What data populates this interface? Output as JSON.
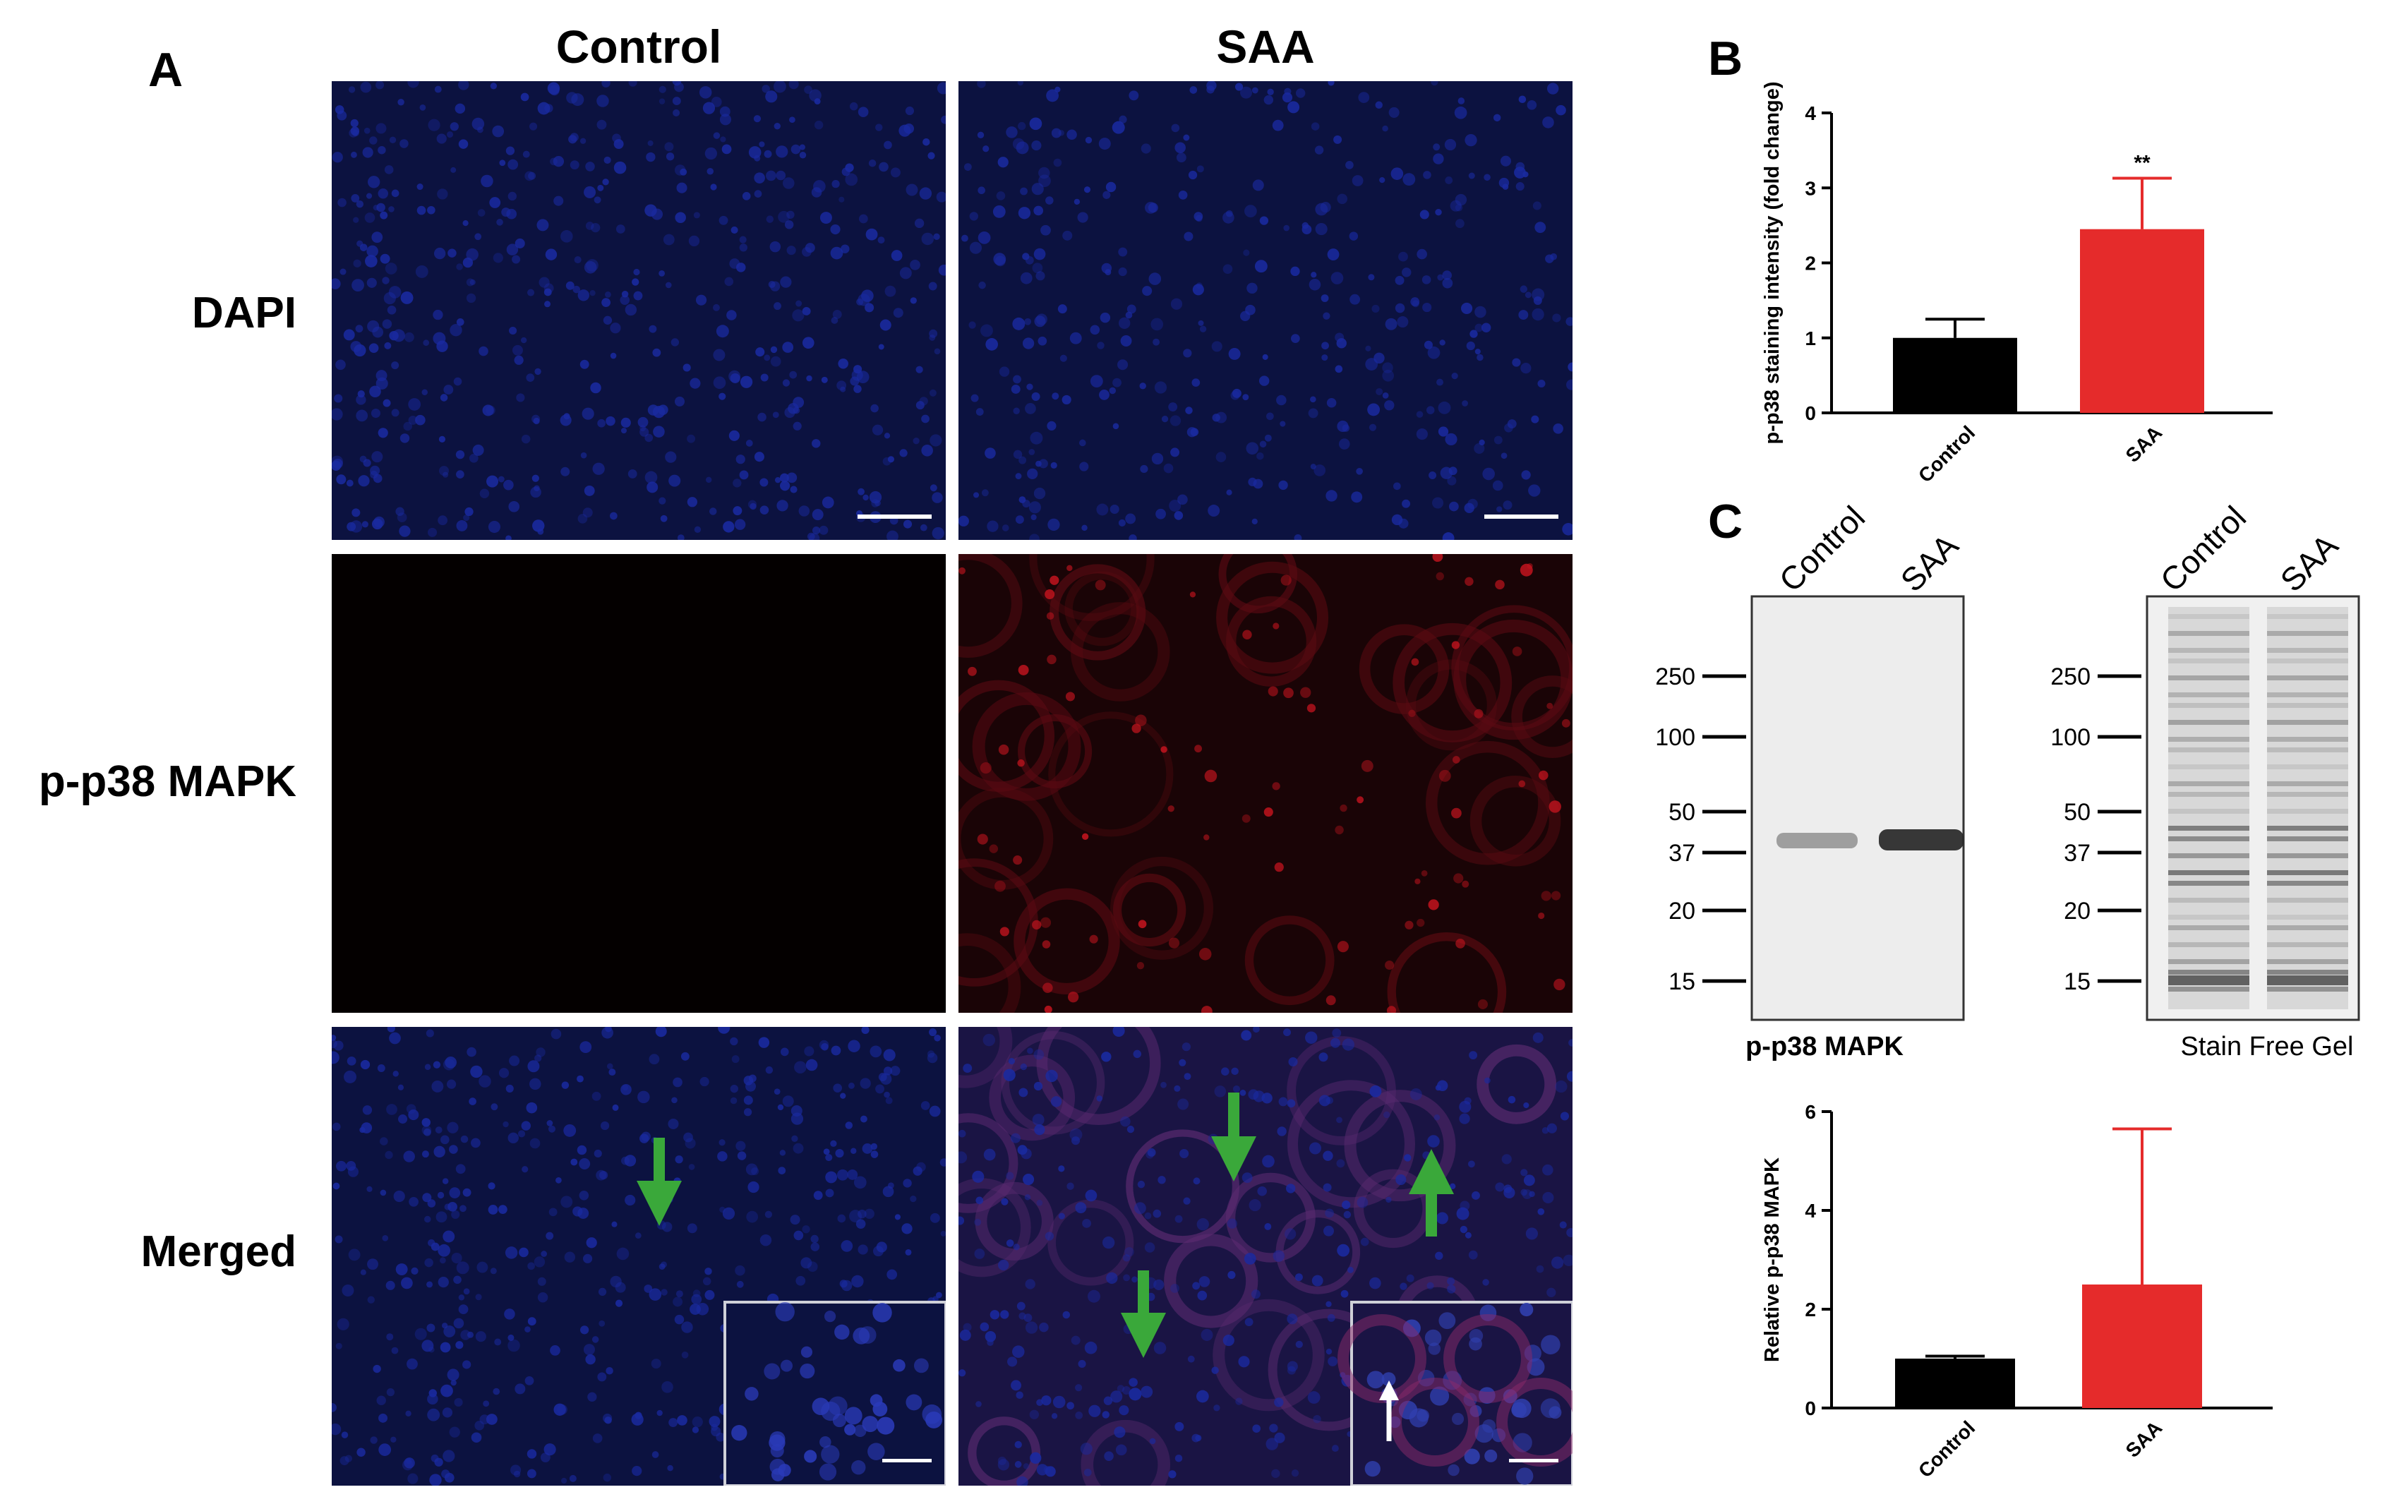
{
  "panels": {
    "a_label": "A",
    "b_label": "B",
    "c_label": "C"
  },
  "microscopy": {
    "col_titles": [
      "Control",
      "SAA"
    ],
    "row_titles": [
      "DAPI",
      "p-p38 MAPK",
      "Merged"
    ],
    "colors": {
      "dapi": "#1a2aa0",
      "p38": "#c0141e",
      "background_blue": "#0c1240",
      "background_black": "#040000",
      "arrow_green": "#3aa83a",
      "arrow_white": "#ffffff"
    }
  },
  "blot": {
    "lane_labels_left": [
      "Control",
      "SAA"
    ],
    "lane_labels_right": [
      "Control",
      "SAA"
    ],
    "markers_left": [
      "250",
      "100",
      "50",
      "37",
      "20",
      "15"
    ],
    "markers_right": [
      "250",
      "100",
      "50",
      "37",
      "20",
      "15"
    ],
    "caption_left": "p-p38 MAPK",
    "caption_right": "Stain Free Gel"
  },
  "chart_data": [
    {
      "type": "bar",
      "panel": "B",
      "categories": [
        "Control",
        "SAA"
      ],
      "values": [
        1.0,
        2.45
      ],
      "errors": [
        0.25,
        0.68
      ],
      "ylabel": "p-p38 staining intensity (fold change)",
      "ylim": [
        0,
        4
      ],
      "yticks": [
        "0",
        "1",
        "2",
        "3",
        "4"
      ],
      "annotation": "**",
      "colors": [
        "#000000",
        "#e52b2b"
      ]
    },
    {
      "type": "bar",
      "panel": "C",
      "categories": [
        "Control",
        "SAA"
      ],
      "values": [
        1.0,
        2.5
      ],
      "errors": [
        0.05,
        3.15
      ],
      "ylabel": "Relative p-p38 MAPK",
      "ylim": [
        0,
        6
      ],
      "yticks": [
        "0",
        "2",
        "4",
        "6"
      ],
      "colors": [
        "#000000",
        "#e52b2b"
      ]
    }
  ]
}
